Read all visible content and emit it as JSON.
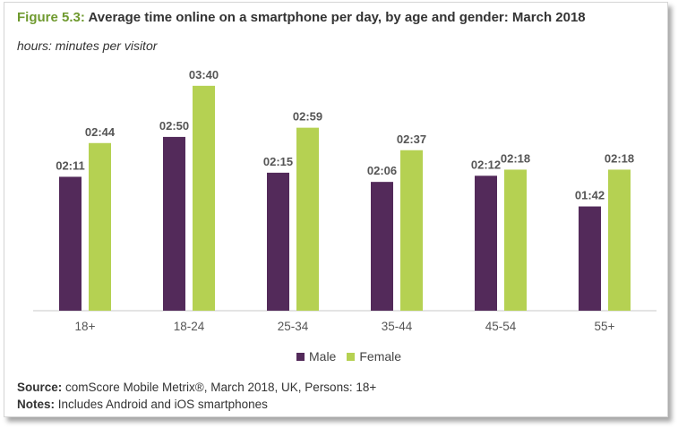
{
  "figure_label": "Figure 5.3:",
  "figure_title": "Average time online on a smartphone per day, by age and gender: March 2018",
  "subtitle": "hours: minutes per visitor",
  "colors": {
    "male": "#532a5a",
    "female": "#b5d152",
    "accent": "#6f9a2f"
  },
  "chart_data": {
    "type": "bar",
    "categories": [
      "18+",
      "18-24",
      "25-34",
      "35-44",
      "45-54",
      "55+"
    ],
    "series": [
      {
        "name": "Male",
        "values": [
          131,
          170,
          135,
          126,
          132,
          102
        ],
        "labels": [
          "02:11",
          "02:50",
          "02:15",
          "02:06",
          "02:12",
          "01:42"
        ]
      },
      {
        "name": "Female",
        "values": [
          164,
          220,
          179,
          157,
          138,
          138
        ],
        "labels": [
          "02:44",
          "03:40",
          "02:59",
          "02:37",
          "02:18",
          "02:18"
        ]
      }
    ],
    "unit": "minutes",
    "ylim": [
      0,
      240
    ],
    "grid": false,
    "legend_position": "bottom"
  },
  "source": {
    "label": "Source:",
    "text": " comScore Mobile Metrix®, March 2018, UK, Persons: 18+"
  },
  "notes": {
    "label": "Notes:",
    "text": " Includes Android and iOS smartphones"
  }
}
